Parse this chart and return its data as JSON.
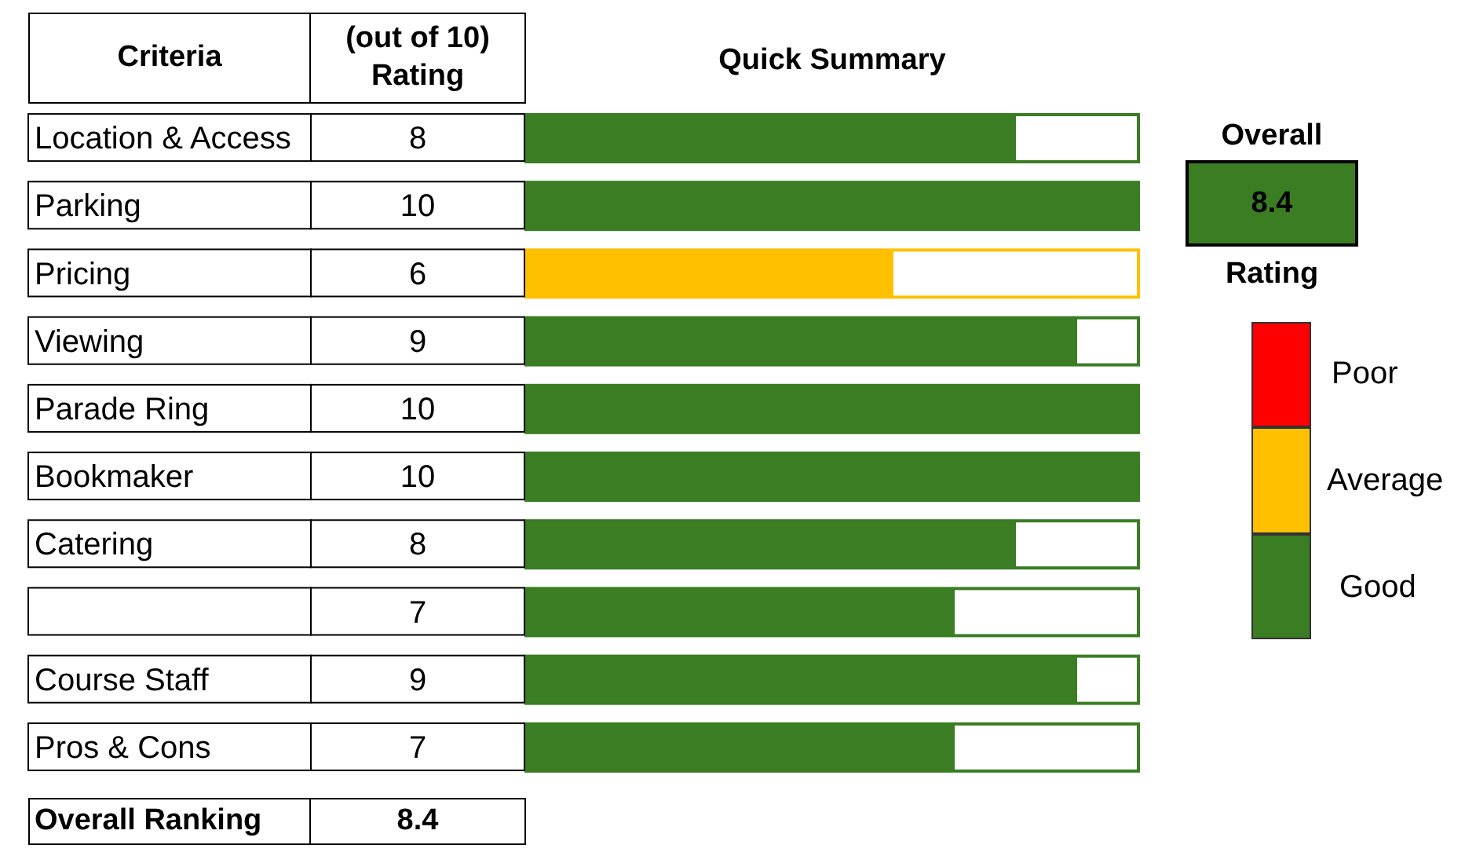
{
  "chart_data": {
    "type": "bar",
    "orientation": "horizontal",
    "title": "Quick Summary",
    "ylabel": "Criteria",
    "xlabel": "(out of 10) Rating",
    "categories": [
      "Location & Access",
      "Parking",
      "Pricing",
      "Viewing",
      "Parade Ring",
      "Bookmaker",
      "Catering",
      null,
      "Course Staff",
      "Pros & Cons"
    ],
    "values": [
      8,
      10,
      6,
      9,
      10,
      10,
      8,
      7,
      9,
      7
    ],
    "colors": [
      "#3a7d23",
      "#3a7d23",
      "#ffc000",
      "#3a7d23",
      "#3a7d23",
      "#3a7d23",
      "#3a7d23",
      "#3a7d23",
      "#3a7d23",
      "#3a7d23"
    ],
    "xlim": [
      0,
      10
    ],
    "tick_labels": false,
    "data_labels": true,
    "annotations": [
      "Overall Ranking",
      "8.4",
      "Overall",
      "8.4",
      "Rating",
      "Poor",
      "Average",
      "Good"
    ]
  }
}
